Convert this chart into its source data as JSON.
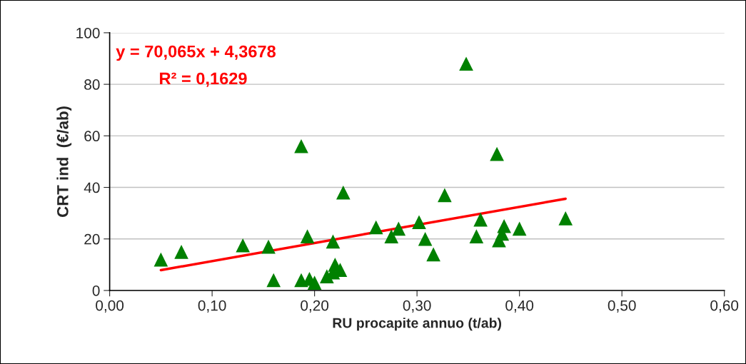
{
  "chart_data": {
    "type": "scatter",
    "xlabel": "RU procapite annuo (t/ab)",
    "ylabel": "CRT ind  (€/ab)",
    "grid": "y",
    "legend": false,
    "xlim": [
      0,
      0.6
    ],
    "ylim": [
      0,
      100
    ],
    "xticks": [
      {
        "value": 0,
        "label": "0,00"
      },
      {
        "value": 0.1,
        "label": "0,10"
      },
      {
        "value": 0.2,
        "label": "0,20"
      },
      {
        "value": 0.3,
        "label": "0,30"
      },
      {
        "value": 0.4,
        "label": "0,40"
      },
      {
        "value": 0.5,
        "label": "0,50"
      },
      {
        "value": 0.6,
        "label": "0,60"
      }
    ],
    "yticks": [
      0,
      20,
      40,
      60,
      80,
      100
    ],
    "annotations": [
      "y = 70,065x + 4,3678",
      "R² = 0,1629"
    ],
    "series": [
      {
        "marker": "triangle",
        "color": "#008000",
        "x": [
          0.05,
          0.07,
          0.13,
          0.155,
          0.16,
          0.187,
          0.187,
          0.193,
          0.195,
          0.2,
          0.212,
          0.218,
          0.22,
          0.218,
          0.225,
          0.228,
          0.26,
          0.275,
          0.282,
          0.302,
          0.308,
          0.316,
          0.327,
          0.348,
          0.358,
          0.362,
          0.378,
          0.38,
          0.383,
          0.385,
          0.4,
          0.445
        ],
        "values": [
          12,
          15,
          17.5,
          17,
          4,
          56,
          4,
          21,
          4.5,
          3,
          5.5,
          19,
          10,
          7,
          8,
          38,
          24.5,
          21,
          24,
          26.5,
          20,
          14,
          37,
          88,
          21,
          27.5,
          53,
          19.5,
          22,
          25,
          24,
          28
        ]
      },
      {
        "type": "line",
        "color": "#ff0000",
        "x": [
          0.05,
          0.445
        ],
        "values": [
          7.9,
          35.6
        ]
      }
    ]
  }
}
